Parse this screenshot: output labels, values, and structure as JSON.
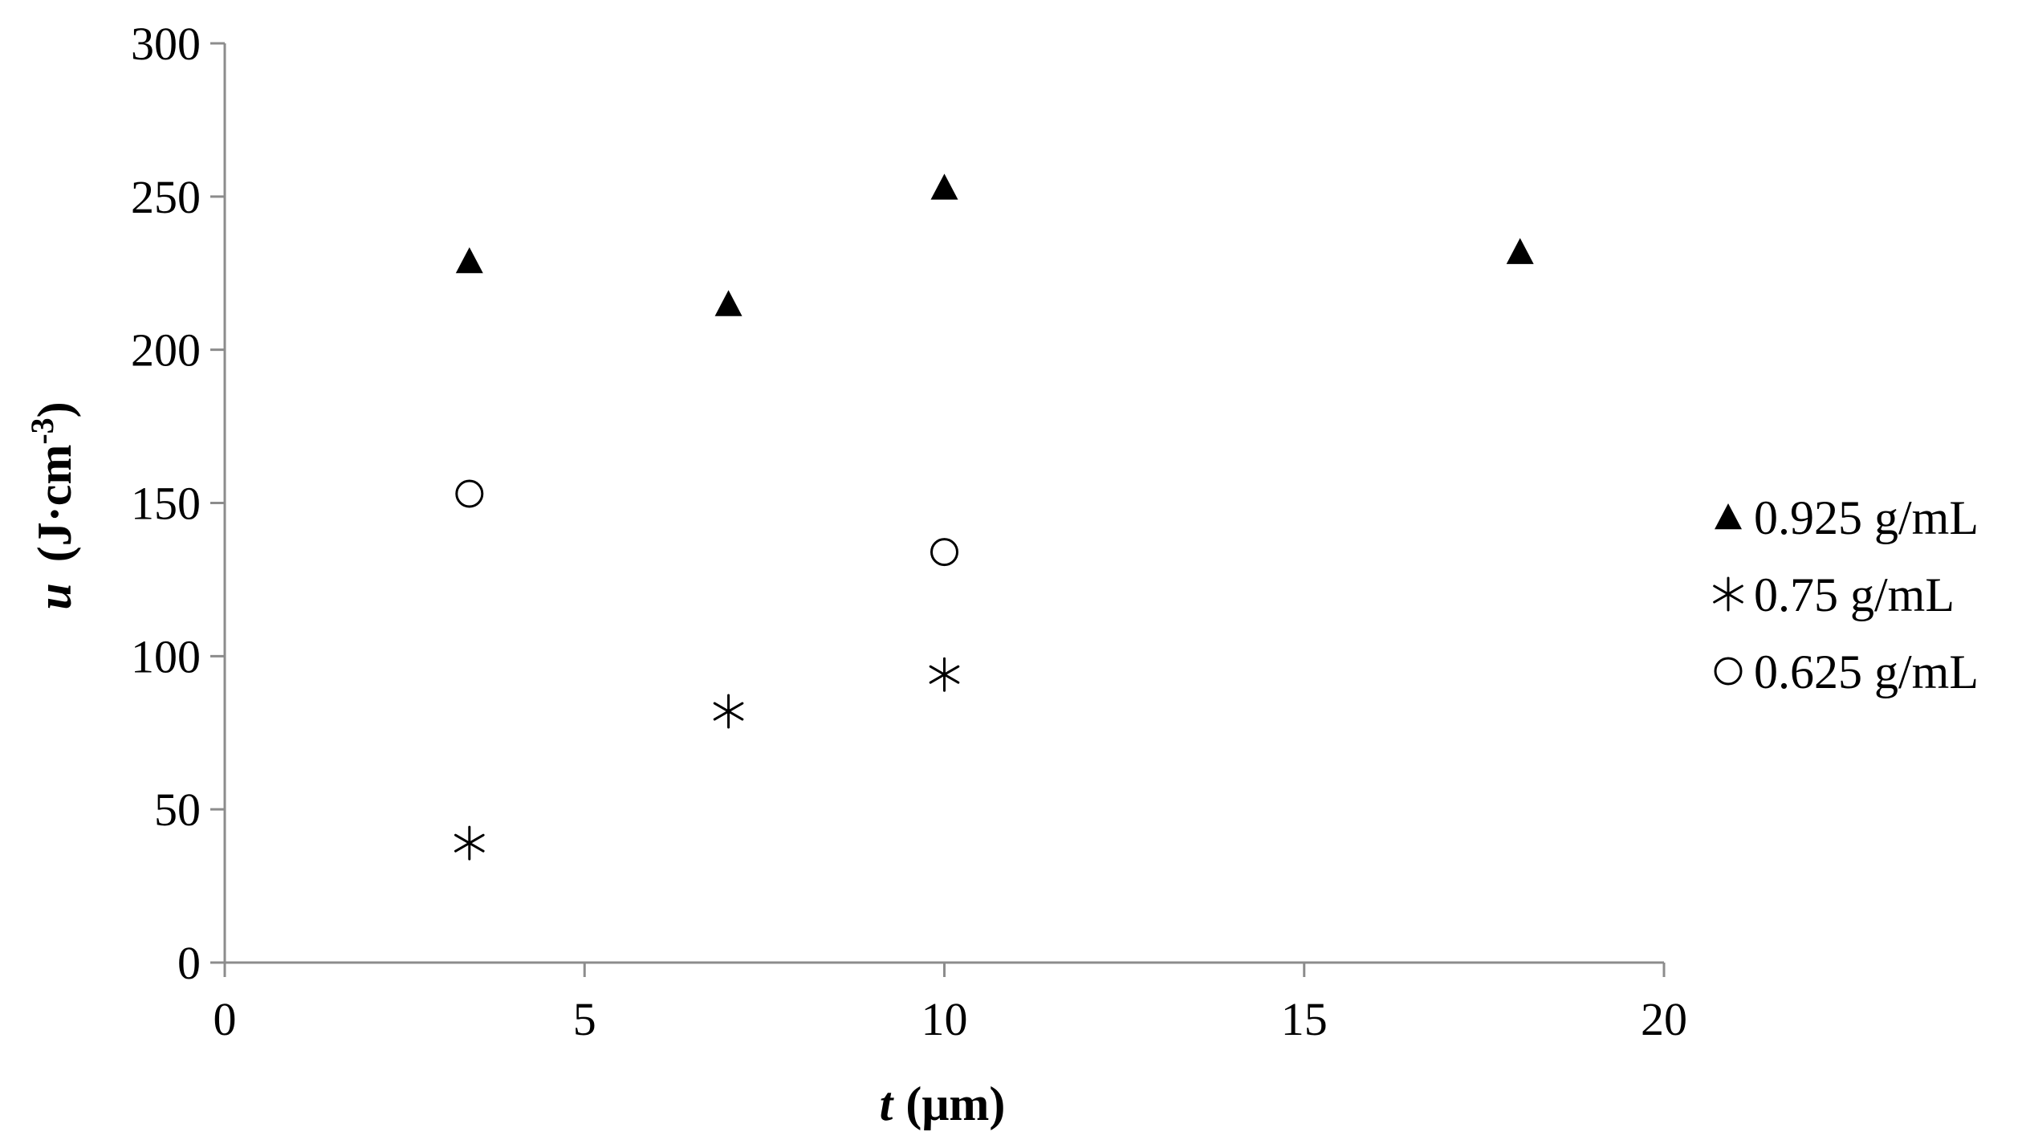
{
  "chart_data": {
    "type": "scatter",
    "title": "",
    "xlabel": {
      "symbol": "t",
      "unit": "(μm)"
    },
    "ylabel": {
      "symbol": "u",
      "unit_main": "(J·cm",
      "unit_sup": "-3",
      "unit_close": ")"
    },
    "xlim": [
      0,
      20
    ],
    "ylim": [
      0,
      300
    ],
    "x_ticks": [
      0,
      5,
      10,
      15,
      20
    ],
    "y_ticks": [
      0,
      50,
      100,
      150,
      200,
      250,
      300
    ],
    "grid": false,
    "legend_position": "right",
    "series": [
      {
        "name": "0.925 g/mL",
        "marker": "filled-triangle",
        "color": "#000000",
        "points": [
          {
            "x": 3.4,
            "y": 229
          },
          {
            "x": 7.0,
            "y": 215
          },
          {
            "x": 10.0,
            "y": 253
          },
          {
            "x": 18.0,
            "y": 232
          }
        ]
      },
      {
        "name": "0.75 g/mL",
        "marker": "asterisk",
        "color": "#000000",
        "points": [
          {
            "x": 3.4,
            "y": 39
          },
          {
            "x": 7.0,
            "y": 82
          },
          {
            "x": 10.0,
            "y": 94
          }
        ]
      },
      {
        "name": "0.625 g/mL",
        "marker": "open-circle",
        "color": "#000000",
        "points": [
          {
            "x": 3.4,
            "y": 153
          },
          {
            "x": 10.0,
            "y": 134
          }
        ]
      }
    ]
  }
}
